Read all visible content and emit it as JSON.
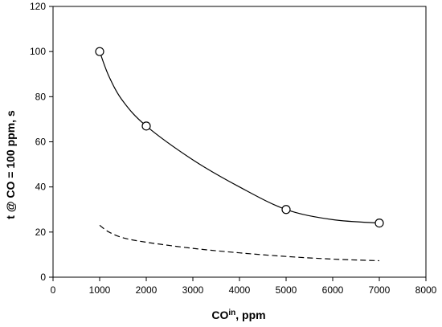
{
  "chart_data": {
    "type": "line",
    "title": "",
    "xlabel": {
      "base": "CO",
      "sup": "in",
      "suffix": ", ppm"
    },
    "ylabel": "t @ CO = 100 ppm, s",
    "xlim": [
      0,
      8000
    ],
    "ylim": [
      0,
      120
    ],
    "xticks": [
      0,
      1000,
      2000,
      3000,
      4000,
      5000,
      6000,
      7000,
      8000
    ],
    "yticks": [
      0,
      20,
      40,
      60,
      80,
      100,
      120
    ],
    "grid": false,
    "legend": "none",
    "series": [
      {
        "style": "solid-markers",
        "markers": "open-circle",
        "points": [
          {
            "x": 1000,
            "y": 100
          },
          {
            "x": 2000,
            "y": 67
          },
          {
            "x": 5000,
            "y": 30
          },
          {
            "x": 7000,
            "y": 24
          }
        ],
        "curve": [
          {
            "x": 1000,
            "y": 100
          },
          {
            "x": 1200,
            "y": 89
          },
          {
            "x": 1500,
            "y": 78
          },
          {
            "x": 2000,
            "y": 67
          },
          {
            "x": 3000,
            "y": 52
          },
          {
            "x": 4000,
            "y": 40
          },
          {
            "x": 5000,
            "y": 30
          },
          {
            "x": 6000,
            "y": 25.5
          },
          {
            "x": 7000,
            "y": 24
          }
        ]
      },
      {
        "style": "dashed",
        "curve": [
          {
            "x": 1000,
            "y": 23
          },
          {
            "x": 1200,
            "y": 20
          },
          {
            "x": 1500,
            "y": 17.5
          },
          {
            "x": 2000,
            "y": 15.5
          },
          {
            "x": 3000,
            "y": 12.8
          },
          {
            "x": 4000,
            "y": 10.8
          },
          {
            "x": 5000,
            "y": 9.2
          },
          {
            "x": 6000,
            "y": 8.0
          },
          {
            "x": 7000,
            "y": 7.3
          }
        ]
      }
    ],
    "colors": {
      "line": "#000000",
      "marker_fill": "#ffffff"
    }
  }
}
